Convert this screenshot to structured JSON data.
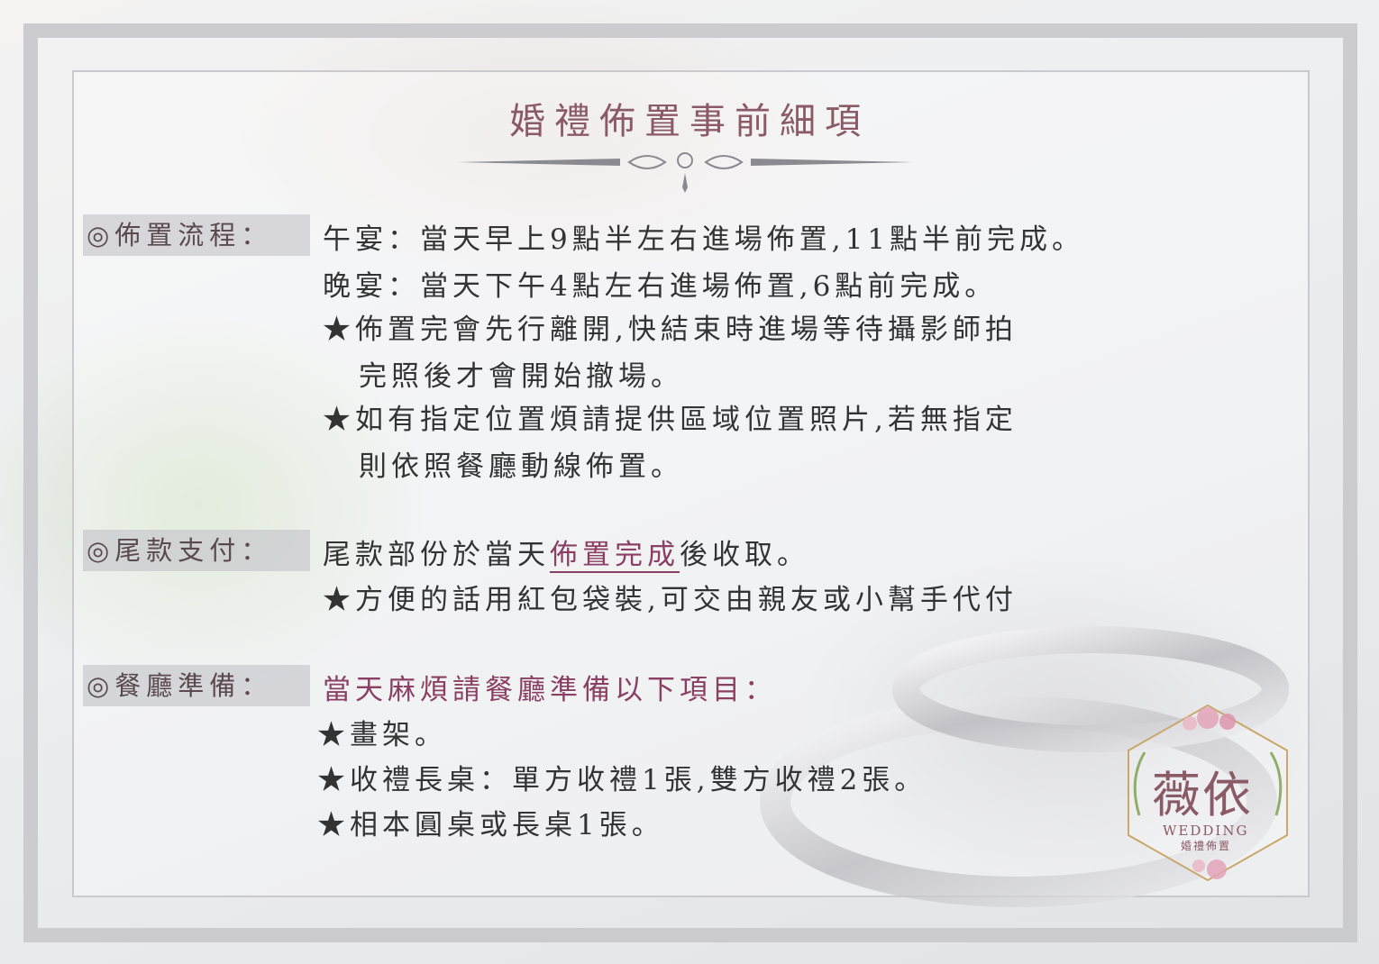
{
  "title": "婚禮佈置事前細項",
  "sections": {
    "flow": {
      "label": "◎佈置流程：",
      "lines": [
        "午宴：當天早上9點半左右進場佈置,11點半前完成。",
        "晚宴：當天下午4點左右進場佈置,6點前完成。",
        "★佈置完會先行離開,快結束時進場等待攝影師拍",
        "完照後才會開始撤場。",
        "★如有指定位置煩請提供區域位置照片,若無指定",
        "則依照餐廳動線佈置。"
      ]
    },
    "payment": {
      "label": "◎尾款支付：",
      "line1_prefix": "尾款部份於當天",
      "line1_highlight": "佈置完成",
      "line1_suffix": "後收取。",
      "line2": "★方便的話用紅包袋裝,可交由親友或小幫手代付"
    },
    "restaurant": {
      "label": "◎餐廳準備：",
      "intro": "當天麻煩請餐廳準備以下項目：",
      "items": [
        "★畫架。",
        "★收禮長桌：單方收禮1張,雙方收禮2張。",
        "★相本圓桌或長桌1張。"
      ]
    }
  },
  "logo": {
    "name": "薇依",
    "en": "WEDDING",
    "sub": "婚禮佈置"
  },
  "colors": {
    "accent": "#8a3f63",
    "title": "#8a5a66",
    "label_bg": "#c4c4ca"
  }
}
